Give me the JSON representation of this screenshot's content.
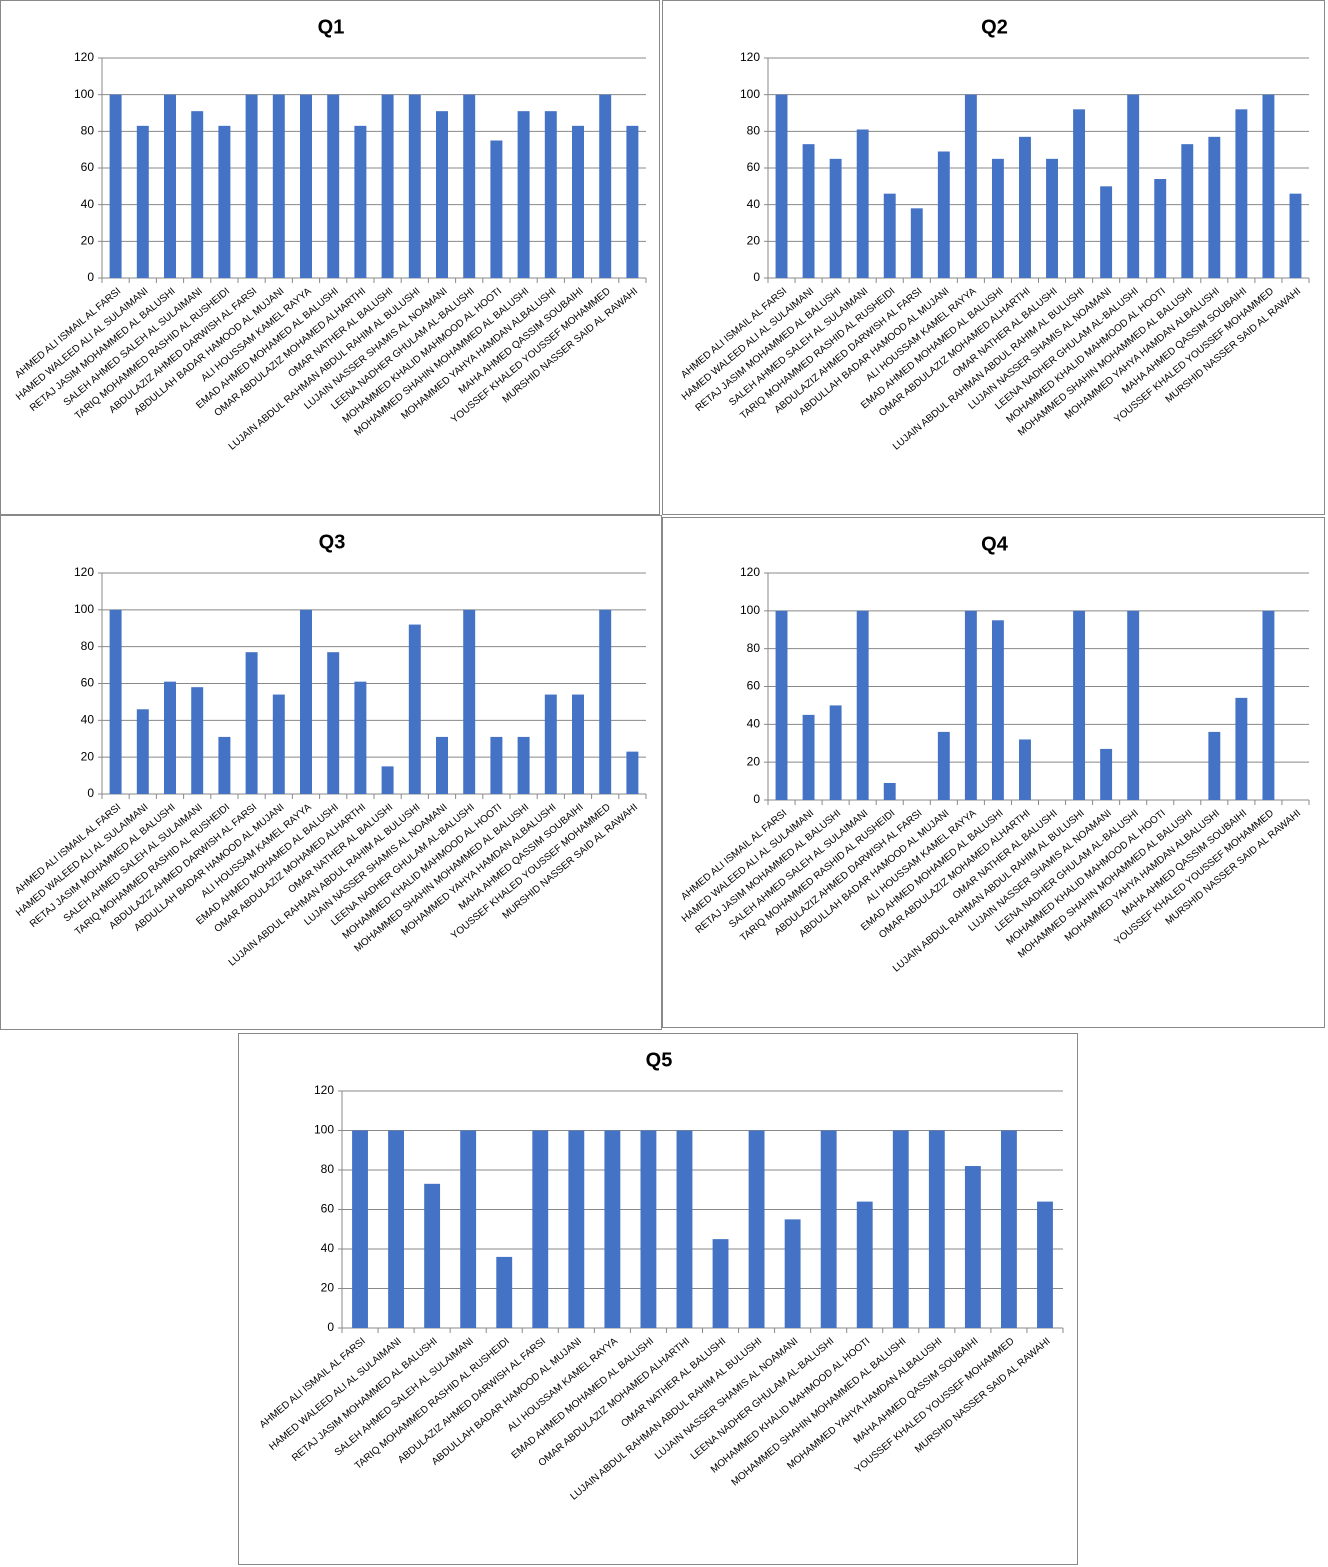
{
  "chart_data": [
    {
      "type": "bar",
      "title": "Q1",
      "color": "#4472c4",
      "ylim": [
        0,
        120
      ],
      "yticks": [
        0,
        20,
        40,
        60,
        80,
        100,
        120
      ],
      "grid": true,
      "categories": [
        "AHMED ALI ISMAIL AL FARSI",
        "HAMED WALEED ALI AL SULAIMANI",
        "RETAJ JASIM MOHAMMED AL BALUSHI",
        "SALEH AHMED SALEH AL SULAIMANI",
        "TARIQ MOHAMMED RASHID AL RUSHEIDI",
        "ABDULAZIZ AHMED DARWISH AL FARSI",
        "ABDULLAH BADAR HAMOOD AL MUJANI",
        "ALI HOUSSAM KAMEL RAYYA",
        "EMAD AHMED MOHAMED AL BALUSHI",
        "OMAR ABDULAZIZ MOHAMED ALHARTHI",
        "OMAR NATHER AL BALUSHI",
        "LUJAIN ABDUL RAHMAN ABDUL RAHIM AL BULUSHI",
        "LUJAIN NASSER SHAMIS AL NOAMANI",
        "LEENA NADHER GHULAM AL-BALUSHI",
        "MOHAMMED KHALID MAHMOOD AL HOOTI",
        "MOHAMMED SHAHIN MOHAMMED AL BALUSHI",
        "MOHAMMED YAHYA HAMDAN ALBALUSHI",
        "MAHA AHMED QASSIM SOUBAIHI",
        "YOUSSEF KHALED YOUSSEF MOHAMMED",
        "MURSHID NASSER SAID AL RAWAHI"
      ],
      "values": [
        100,
        83,
        100,
        91,
        83,
        100,
        100,
        100,
        100,
        83,
        100,
        100,
        91,
        100,
        75,
        91,
        91,
        83,
        100,
        83
      ]
    },
    {
      "type": "bar",
      "title": "Q2",
      "color": "#4472c4",
      "ylim": [
        0,
        120
      ],
      "yticks": [
        0,
        20,
        40,
        60,
        80,
        100,
        120
      ],
      "grid": true,
      "categories": [
        "AHMED ALI ISMAIL AL FARSI",
        "HAMED WALEED ALI AL SULAIMANI",
        "RETAJ JASIM MOHAMMED AL BALUSHI",
        "SALEH AHMED SALEH AL SULAIMANI",
        "TARIQ MOHAMMED RASHID AL RUSHEIDI",
        "ABDULAZIZ AHMED DARWISH AL FARSI",
        "ABDULLAH BADAR HAMOOD AL MUJANI",
        "ALI HOUSSAM KAMEL RAYYA",
        "EMAD AHMED MOHAMED AL BALUSHI",
        "OMAR ABDULAZIZ MOHAMED ALHARTHI",
        "OMAR NATHER AL BALUSHI",
        "LUJAIN ABDUL RAHMAN ABDUL RAHIM AL BULUSHI",
        "LUJAIN NASSER SHAMIS AL NOAMANI",
        "LEENA NADHER GHULAM AL-BALUSHI",
        "MOHAMMED KHALID MAHMOOD AL HOOTI",
        "MOHAMMED SHAHIN MOHAMMED AL BALUSHI",
        "MOHAMMED YAHYA HAMDAN ALBALUSHI",
        "MAHA AHMED QASSIM SOUBAIHI",
        "YOUSSEF KHALED YOUSSEF MOHAMMED",
        "MURSHID NASSER SAID AL RAWAHI"
      ],
      "values": [
        100,
        73,
        65,
        81,
        46,
        38,
        69,
        100,
        65,
        77,
        65,
        92,
        50,
        100,
        54,
        73,
        77,
        92,
        100,
        46
      ]
    },
    {
      "type": "bar",
      "title": "Q3",
      "color": "#4472c4",
      "ylim": [
        0,
        120
      ],
      "yticks": [
        0,
        20,
        40,
        60,
        80,
        100,
        120
      ],
      "grid": true,
      "categories": [
        "AHMED ALI ISMAIL AL FARSI",
        "HAMED WALEED ALI AL SULAIMANI",
        "RETAJ JASIM MOHAMMED AL BALUSHI",
        "SALEH AHMED SALEH AL SULAIMANI",
        "TARIQ MOHAMMED RASHID AL RUSHEIDI",
        "ABDULAZIZ AHMED DARWISH AL FARSI",
        "ABDULLAH BADAR HAMOOD AL MUJANI",
        "ALI HOUSSAM KAMEL RAYYA",
        "EMAD AHMED MOHAMED AL BALUSHI",
        "OMAR ABDULAZIZ MOHAMED ALHARTHI",
        "OMAR NATHER AL BALUSHI",
        "LUJAIN ABDUL RAHMAN ABDUL RAHIM AL BULUSHI",
        "LUJAIN NASSER SHAMIS AL NOAMANI",
        "LEENA NADHER GHULAM AL-BALUSHI",
        "MOHAMMED KHALID MAHMOOD AL HOOTI",
        "MOHAMMED SHAHIN MOHAMMED AL BALUSHI",
        "MOHAMMED YAHYA HAMDAN ALBALUSHI",
        "MAHA AHMED QASSIM SOUBAIHI",
        "YOUSSEF KHALED YOUSSEF MOHAMMED",
        "MURSHID NASSER SAID AL RAWAHI"
      ],
      "values": [
        100,
        46,
        61,
        58,
        31,
        77,
        54,
        100,
        77,
        61,
        15,
        92,
        31,
        100,
        31,
        31,
        54,
        54,
        100,
        23
      ]
    },
    {
      "type": "bar",
      "title": "Q4",
      "color": "#4472c4",
      "ylim": [
        0,
        120
      ],
      "yticks": [
        0,
        20,
        40,
        60,
        80,
        100,
        120
      ],
      "grid": true,
      "categories": [
        "AHMED ALI ISMAIL AL FARSI",
        "HAMED WALEED ALI AL SULAIMANI",
        "RETAJ JASIM MOHAMMED AL BALUSHI",
        "SALEH AHMED SALEH AL SULAIMANI",
        "TARIQ MOHAMMED RASHID AL RUSHEIDI",
        "ABDULAZIZ AHMED DARWISH AL FARSI",
        "ABDULLAH BADAR HAMOOD AL MUJANI",
        "ALI HOUSSAM KAMEL RAYYA",
        "EMAD AHMED MOHAMED AL BALUSHI",
        "OMAR ABDULAZIZ MOHAMED ALHARTHI",
        "OMAR NATHER AL BALUSHI",
        "LUJAIN ABDUL RAHMAN ABDUL RAHIM AL BULUSHI",
        "LUJAIN NASSER SHAMIS AL NOAMANI",
        "LEENA NADHER GHULAM AL-BALUSHI",
        "MOHAMMED KHALID MAHMOOD AL HOOTI",
        "MOHAMMED SHAHIN MOHAMMED AL BALUSHI",
        "MOHAMMED YAHYA HAMDAN ALBALUSHI",
        "MAHA AHMED QASSIM SOUBAIHI",
        "YOUSSEF KHALED YOUSSEF MOHAMMED",
        "MURSHID NASSER SAID AL RAWAHI"
      ],
      "values": [
        100,
        45,
        50,
        100,
        9,
        0,
        36,
        100,
        95,
        32,
        0,
        100,
        27,
        100,
        0,
        0,
        36,
        54,
        100,
        0
      ]
    },
    {
      "type": "bar",
      "title": "Q5",
      "color": "#4472c4",
      "ylim": [
        0,
        120
      ],
      "yticks": [
        0,
        20,
        40,
        60,
        80,
        100,
        120
      ],
      "grid": true,
      "categories": [
        "AHMED ALI ISMAIL AL FARSI",
        "HAMED WALEED ALI AL SULAIMANI",
        "RETAJ JASIM MOHAMMED AL BALUSHI",
        "SALEH AHMED SALEH AL SULAIMANI",
        "TARIQ MOHAMMED RASHID AL RUSHEIDI",
        "ABDULAZIZ AHMED DARWISH AL FARSI",
        "ABDULLAH BADAR HAMOOD AL MUJANI",
        "ALI HOUSSAM KAMEL RAYYA",
        "EMAD AHMED MOHAMED AL BALUSHI",
        "OMAR ABDULAZIZ MOHAMED ALHARTHI",
        "OMAR NATHER AL BALUSHI",
        "LUJAIN ABDUL RAHMAN ABDUL RAHIM AL BULUSHI",
        "LUJAIN NASSER SHAMIS AL NOAMANI",
        "LEENA NADHER GHULAM AL-BALUSHI",
        "MOHAMMED KHALID MAHMOOD AL HOOTI",
        "MOHAMMED SHAHIN MOHAMMED AL BALUSHI",
        "MOHAMMED YAHYA HAMDAN ALBALUSHI",
        "MAHA AHMED QASSIM SOUBAIHI",
        "YOUSSEF KHALED YOUSSEF MOHAMMED",
        "MURSHID NASSER SAID AL RAWAHI"
      ],
      "values": [
        100,
        100,
        73,
        100,
        36,
        100,
        100,
        100,
        100,
        100,
        45,
        100,
        55,
        100,
        64,
        100,
        100,
        82,
        100,
        64
      ]
    }
  ]
}
